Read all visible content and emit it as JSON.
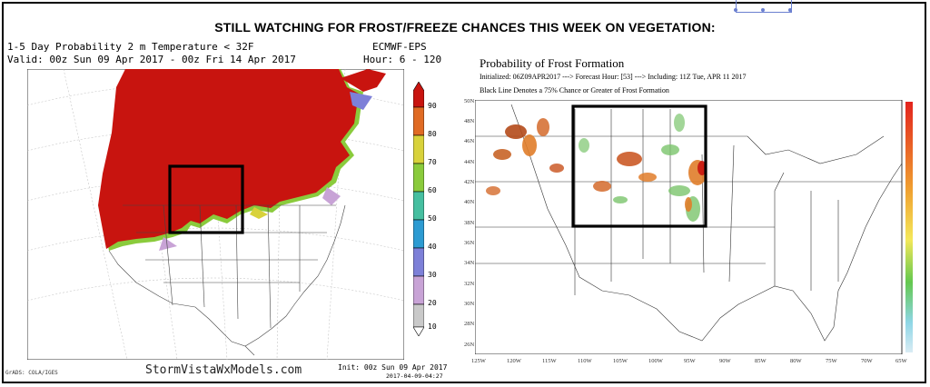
{
  "headline": "STILL WATCHING FOR FROST/FREEZE CHANCES THIS WEEK ON VEGETATION:",
  "left_panel": {
    "title_line1": "1-5 Day Probability 2 m Temperature < 32F",
    "model": "ECMWF-EPS",
    "valid_line": "Valid: 00z Sun 09 Apr 2017 - 00z Fri 14 Apr 2017",
    "hour_range": "Hour: 6 - 120",
    "colorbar_labels": [
      "90",
      "80",
      "70",
      "60",
      "50",
      "40",
      "30",
      "20",
      "10"
    ],
    "colorbar_colors": {
      "90": "#c8140f",
      "80": "#e06b24",
      "70": "#d8d23b",
      "60": "#8acb3c",
      "50": "#46bfa0",
      "40": "#2d9bd2",
      "30": "#7d80d8",
      "20": "#c8a3d6",
      "10": "#c9c9c9"
    },
    "footer_brand": "StormVistaWxModels.com",
    "grads_credit": "GrADS: COLA/IGES",
    "init_line": "Init: 00z Sun 09 Apr 2017",
    "init_timestamp": "2017-04-09-04:27"
  },
  "right_panel": {
    "title": "Probability of Frost Formation",
    "line1": "Initialized: 06Z09APR2017 ---> Forecast Hour: [53] ---> Including: 11Z Tue, APR 11 2017",
    "line2": "Black Line Denotes a 75% Chance or Greater of Frost Formation",
    "lat_labels": [
      "50N",
      "48N",
      "46N",
      "44N",
      "42N",
      "40N",
      "38N",
      "36N",
      "34N",
      "32N",
      "30N",
      "28N",
      "26N"
    ],
    "lon_labels": [
      "125W",
      "120W",
      "115W",
      "110W",
      "105W",
      "100W",
      "95W",
      "90W",
      "85W",
      "80W",
      "75W",
      "70W",
      "65W"
    ]
  }
}
